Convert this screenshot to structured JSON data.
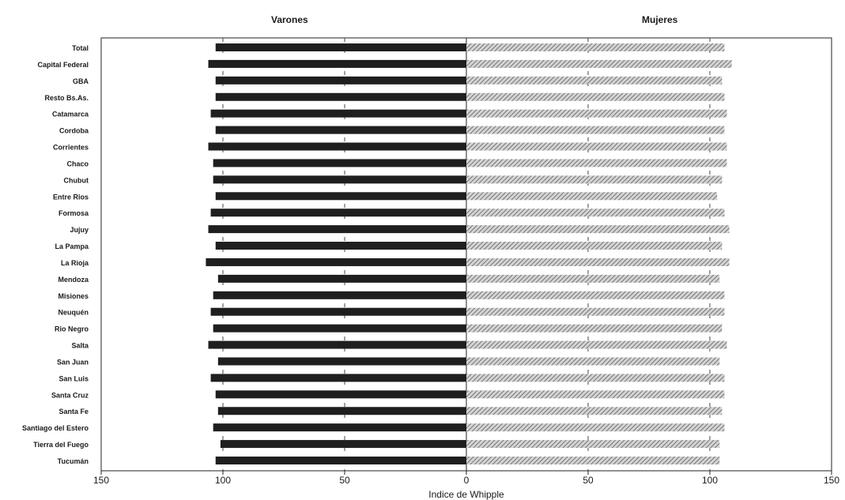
{
  "chart_data": {
    "type": "bar",
    "orientation": "horizontal-diverging",
    "xlabel": "Indice de Whipple",
    "xlim": [
      -150,
      150
    ],
    "x_tick_labels": [
      "150",
      "100",
      "50",
      "0",
      "50",
      "100",
      "150"
    ],
    "grid": "vertical dashed",
    "legend": "none",
    "categories": [
      "Total",
      "Capital Federal",
      "GBA",
      "Resto Bs.As.",
      "Catamarca",
      "Cordoba",
      "Corrientes",
      "Chaco",
      "Chubut",
      "Entre Rios",
      "Formosa",
      "Jujuy",
      "La Pampa",
      "La Rioja",
      "Mendoza",
      "Misiones",
      "Neuquén",
      "Rio Negro",
      "Salta",
      "San Juan",
      "San Luis",
      "Santa Cruz",
      "Santa Fe",
      "Santiago del Estero",
      "Tierra del Fuego",
      "Tucumán"
    ],
    "series": [
      {
        "name": "Varones",
        "values": [
          103,
          106,
          103,
          103,
          105,
          103,
          106,
          104,
          104,
          103,
          105,
          106,
          103,
          107,
          102,
          104,
          105,
          104,
          106,
          102,
          105,
          103,
          102,
          104,
          101,
          103
        ]
      },
      {
        "name": "Mujeres",
        "values": [
          106,
          109,
          105,
          106,
          107,
          106,
          107,
          107,
          105,
          103,
          106,
          108,
          105,
          108,
          104,
          106,
          106,
          105,
          107,
          104,
          106,
          106,
          105,
          106,
          104,
          104
        ]
      }
    ],
    "colors": {
      "Varones": "#1f1f1f",
      "Mujeres": "#8c8c8c"
    }
  }
}
